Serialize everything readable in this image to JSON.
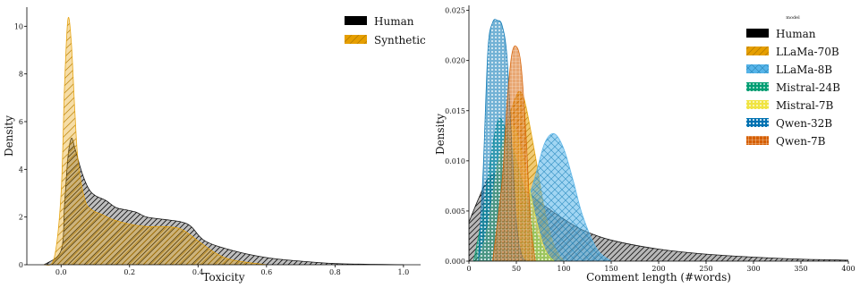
{
  "chart_data": [
    {
      "type": "area",
      "xlabel": "Toxicity",
      "ylabel": "Density",
      "xlim": [
        -0.1,
        1.05
      ],
      "ylim": [
        0,
        10.8
      ],
      "xticks": [
        "0.0",
        "0.2",
        "0.4",
        "0.6",
        "0.8",
        "1.0"
      ],
      "yticks": [
        "0",
        "2",
        "4",
        "6",
        "8",
        "10"
      ],
      "legend_position": "top-right",
      "series": [
        {
          "name": "Human",
          "color": "#000000",
          "hatch": "dense diagonal lines",
          "x": [
            -0.05,
            0.0,
            0.01,
            0.02,
            0.03,
            0.04,
            0.06,
            0.08,
            0.1,
            0.13,
            0.16,
            0.19,
            0.22,
            0.25,
            0.3,
            0.35,
            0.38,
            0.42,
            0.5,
            0.6,
            0.7,
            0.8,
            0.9,
            1.0
          ],
          "y": [
            0,
            0.6,
            2.5,
            4.5,
            5.3,
            4.9,
            3.9,
            3.2,
            2.9,
            2.7,
            2.4,
            2.3,
            2.2,
            2.0,
            1.9,
            1.8,
            1.6,
            1.0,
            0.6,
            0.3,
            0.15,
            0.05,
            0.02,
            0
          ]
        },
        {
          "name": "Synthetic",
          "color": "#E69F00",
          "hatch": "sparse diagonal lines",
          "x": [
            -0.05,
            -0.02,
            0.0,
            0.01,
            0.02,
            0.03,
            0.04,
            0.05,
            0.07,
            0.09,
            0.12,
            0.15,
            0.2,
            0.25,
            0.3,
            0.35,
            0.4,
            0.45,
            0.5,
            0.6
          ],
          "y": [
            0,
            0.3,
            3.0,
            7.5,
            10.3,
            9.3,
            6.5,
            4.3,
            2.7,
            2.3,
            2.1,
            1.9,
            1.7,
            1.6,
            1.6,
            1.5,
            1.0,
            0.5,
            0.2,
            0
          ]
        }
      ]
    },
    {
      "type": "area",
      "xlabel": "Comment length (#words)",
      "ylabel": "Density",
      "legend_title": "model",
      "xlim": [
        0,
        400
      ],
      "ylim": [
        0,
        0.0255
      ],
      "xticks": [
        "0",
        "50",
        "100",
        "150",
        "200",
        "250",
        "300",
        "350",
        "400"
      ],
      "yticks": [
        "0.000",
        "0.005",
        "0.010",
        "0.015",
        "0.020",
        "0.025"
      ],
      "legend_position": "top-right",
      "series": [
        {
          "name": "Human",
          "color": "#000000",
          "hatch": "dense diagonal lines",
          "x": [
            0,
            10,
            20,
            30,
            40,
            50,
            60,
            80,
            100,
            120,
            150,
            200,
            250,
            300,
            350,
            400
          ],
          "y": [
            0.0039,
            0.0062,
            0.0082,
            0.0088,
            0.0085,
            0.0079,
            0.007,
            0.0055,
            0.0042,
            0.0031,
            0.0021,
            0.0012,
            0.0007,
            0.0004,
            0.0002,
            0.0001
          ]
        },
        {
          "name": "LLaMa-70B",
          "color": "#E69F00",
          "hatch": "diagonal lines",
          "x": [
            10,
            20,
            30,
            40,
            50,
            55,
            60,
            70,
            80,
            90,
            100
          ],
          "y": [
            0,
            0.002,
            0.008,
            0.0135,
            0.0165,
            0.0168,
            0.0155,
            0.0105,
            0.005,
            0.0015,
            0
          ]
        },
        {
          "name": "LLaMa-8B",
          "color": "#56B4E9",
          "hatch": "crosshatch",
          "x": [
            25,
            40,
            50,
            60,
            70,
            80,
            90,
            100,
            110,
            120,
            135,
            150
          ],
          "y": [
            0,
            0.002,
            0.004,
            0.0055,
            0.0085,
            0.0118,
            0.0127,
            0.0112,
            0.008,
            0.0045,
            0.0012,
            0
          ]
        },
        {
          "name": "Mistral-24B",
          "color": "#009E73",
          "hatch": "dots",
          "x": [
            5,
            15,
            25,
            32,
            40,
            50,
            60,
            70,
            80,
            90
          ],
          "y": [
            0,
            0.005,
            0.0115,
            0.0142,
            0.0128,
            0.01,
            0.0065,
            0.003,
            0.001,
            0
          ]
        },
        {
          "name": "Mistral-7B",
          "color": "#F0E442",
          "hatch": "dots",
          "x": [
            10,
            20,
            30,
            40,
            45,
            50,
            60,
            70,
            80,
            90
          ],
          "y": [
            0,
            0.0035,
            0.0095,
            0.013,
            0.0135,
            0.0128,
            0.009,
            0.0045,
            0.0012,
            0
          ]
        },
        {
          "name": "Qwen-32B",
          "color": "#0072B2",
          "hatch": "dots",
          "x": [
            10,
            15,
            20,
            25,
            30,
            35,
            40,
            45,
            50,
            55,
            60
          ],
          "y": [
            0,
            0.009,
            0.021,
            0.0238,
            0.024,
            0.0235,
            0.0205,
            0.012,
            0.004,
            0.0008,
            0
          ]
        },
        {
          "name": "Qwen-7B",
          "color": "#D55E00",
          "hatch": "grid",
          "x": [
            25,
            35,
            40,
            45,
            50,
            55,
            60,
            65,
            70
          ],
          "y": [
            0,
            0.008,
            0.0155,
            0.0205,
            0.0214,
            0.0195,
            0.0128,
            0.004,
            0
          ]
        }
      ]
    }
  ]
}
